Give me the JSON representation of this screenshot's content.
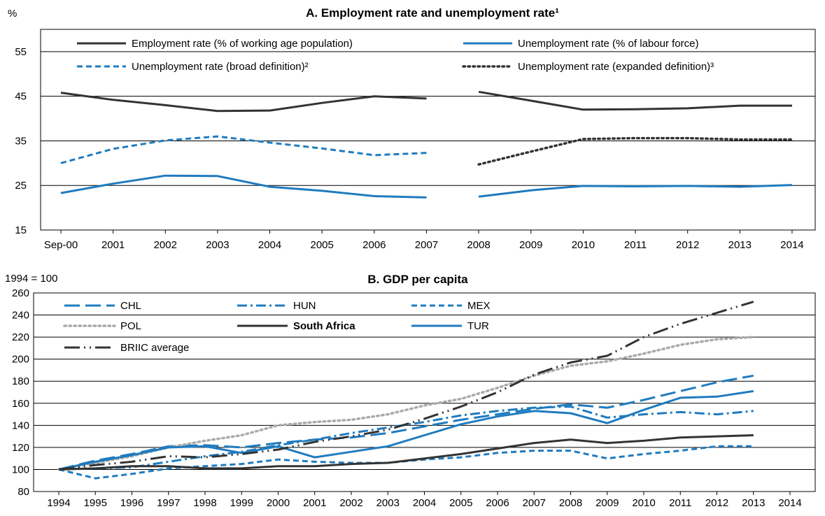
{
  "chart_data": [
    {
      "type": "line",
      "title": "A. Employment rate and unemployment rate¹",
      "ylabel": "%",
      "ylim": [
        15,
        60
      ],
      "yticks": [
        15,
        25,
        35,
        45,
        55
      ],
      "categories": [
        "Sep-00",
        "2001",
        "2002",
        "2003",
        "2004",
        "2005",
        "2006",
        "2007",
        "2008",
        "2009",
        "2010",
        "2011",
        "2012",
        "2013",
        "2014"
      ],
      "legend_position": "top",
      "series": [
        {
          "name": "Employment rate (% of working age population)",
          "color": "#333333",
          "dash": "solid",
          "values": [
            45.8,
            44.2,
            43.0,
            41.7,
            41.8,
            43.5,
            45.0,
            44.5,
            46.0,
            44.0,
            42.0,
            42.1,
            42.3,
            42.9,
            42.9
          ]
        },
        {
          "name": "Unemployment rate (% of labour force)",
          "color": "#1f7bbf",
          "dash": "solid",
          "values": [
            23.3,
            25.4,
            27.2,
            27.1,
            24.7,
            23.8,
            22.6,
            22.3,
            22.5,
            23.9,
            24.9,
            24.8,
            24.9,
            24.7,
            25.1
          ]
        },
        {
          "name": "Unemployment rate (broad definition)²",
          "color": "#1f7bbf",
          "dash": "dashed",
          "values": [
            30.0,
            33.2,
            35.1,
            36.0,
            34.6,
            33.3,
            31.8,
            32.3,
            null,
            null,
            null,
            null,
            null,
            null,
            null
          ]
        },
        {
          "name": "Unemployment rate (expanded definition)³",
          "color": "#333333",
          "dash": "dotted",
          "values": [
            null,
            null,
            null,
            null,
            null,
            null,
            null,
            null,
            29.7,
            32.6,
            35.4,
            35.6,
            35.6,
            35.3,
            35.3
          ]
        }
      ]
    },
    {
      "type": "line",
      "title": "B. GDP per capita",
      "ylabel": "1994 = 100",
      "ylim": [
        80,
        260
      ],
      "yticks": [
        80,
        100,
        120,
        140,
        160,
        180,
        200,
        220,
        240,
        260
      ],
      "categories": [
        "1994",
        "1995",
        "1996",
        "1997",
        "1998",
        "1999",
        "2000",
        "2001",
        "2002",
        "2003",
        "2004",
        "2005",
        "2006",
        "2007",
        "2008",
        "2009",
        "2010",
        "2011",
        "2012",
        "2013",
        "2014"
      ],
      "legend_position": "top-left",
      "series": [
        {
          "name": "CHL",
          "color": "#1f7bbf",
          "dash": "longdash",
          "values": [
            100,
            108,
            114,
            121,
            122,
            120,
            124,
            127,
            129,
            133,
            139,
            145,
            150,
            155,
            159,
            156,
            163,
            171,
            179,
            185,
            null
          ]
        },
        {
          "name": "HUN",
          "color": "#1f7bbf",
          "dash": "dashdot",
          "values": [
            100,
            101,
            102,
            107,
            112,
            116,
            122,
            127,
            133,
            138,
            143,
            149,
            153,
            156,
            157,
            147,
            150,
            152,
            150,
            153,
            null
          ]
        },
        {
          "name": "MEX",
          "color": "#1f7bbf",
          "dash": "dashed",
          "values": [
            100,
            92,
            96,
            101,
            103,
            105,
            109,
            107,
            106,
            106,
            109,
            111,
            115,
            117,
            117,
            110,
            114,
            117,
            121,
            121,
            null
          ]
        },
        {
          "name": "POL",
          "color": "#aaaaaa",
          "dash": "dotted",
          "values": [
            100,
            106,
            112,
            120,
            126,
            131,
            140,
            143,
            145,
            150,
            158,
            164,
            174,
            185,
            194,
            198,
            205,
            213,
            218,
            220,
            null
          ]
        },
        {
          "name": "South Africa",
          "color": "#333333",
          "dash": "solid",
          "values": [
            100,
            101,
            103,
            103,
            101,
            101,
            103,
            103,
            105,
            106,
            110,
            114,
            119,
            124,
            127,
            124,
            126,
            129,
            130,
            131,
            null
          ]
        },
        {
          "name": "TUR",
          "color": "#1f7bbf",
          "dash": "solid",
          "values": [
            100,
            107,
            113,
            120,
            121,
            115,
            121,
            111,
            116,
            121,
            131,
            141,
            148,
            153,
            151,
            142,
            154,
            165,
            166,
            171,
            null
          ]
        },
        {
          "name": "BRIIC average",
          "color": "#333333",
          "dash": "longdashdot",
          "values": [
            100,
            104,
            107,
            112,
            111,
            114,
            118,
            125,
            130,
            136,
            146,
            157,
            170,
            186,
            197,
            203,
            220,
            232,
            242,
            252,
            null
          ]
        }
      ]
    }
  ]
}
